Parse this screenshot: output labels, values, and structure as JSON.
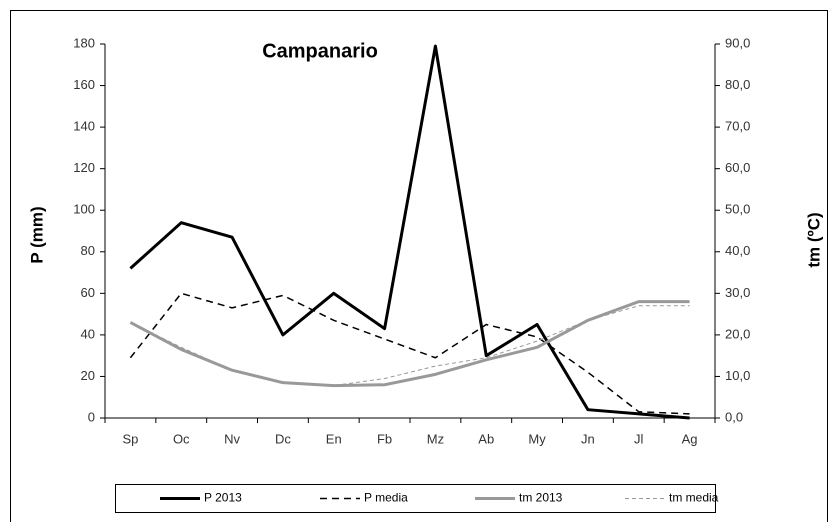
{
  "chart_data": {
    "type": "line",
    "title": "Campanario",
    "y_label": "P (mm)",
    "y2_label": "tm (ºC)",
    "categories": [
      "Sp",
      "Oc",
      "Nv",
      "Dc",
      "En",
      "Fb",
      "Mz",
      "Ab",
      "My",
      "Jn",
      "Jl",
      "Ag"
    ],
    "ylim": [
      0,
      180
    ],
    "yticks": [
      0,
      20,
      40,
      60,
      80,
      100,
      120,
      140,
      160,
      180
    ],
    "y2lim": [
      0,
      90
    ],
    "y2ticks": [
      {
        "value": 0,
        "label": "0,0"
      },
      {
        "value": 10,
        "label": "10,0"
      },
      {
        "value": 20,
        "label": "20,0"
      },
      {
        "value": 30,
        "label": "30,0"
      },
      {
        "value": 40,
        "label": "40,0"
      },
      {
        "value": 50,
        "label": "50,0"
      },
      {
        "value": 60,
        "label": "60,0"
      },
      {
        "value": 70,
        "label": "70,0"
      },
      {
        "value": 80,
        "label": "80,0"
      },
      {
        "value": 90,
        "label": "90,0"
      }
    ],
    "legend": "bottom",
    "series": [
      {
        "name": "P 2013",
        "color": "#000000",
        "line_style": "solid",
        "line_weight": "bold",
        "values": [
          72,
          94,
          87,
          40,
          60,
          43,
          179,
          30,
          45,
          4,
          2,
          0
        ]
      },
      {
        "name": "P media",
        "color": "#000000",
        "line_style": "dashed",
        "line_weight": "normal",
        "values": [
          29,
          60,
          53,
          59,
          47,
          38,
          29,
          45,
          39,
          22,
          3,
          2
        ]
      },
      {
        "name": "tm 2013",
        "color": "#999999",
        "line_style": "solid",
        "line_weight": "bold",
        "axis": "y2",
        "values": [
          23,
          16.5,
          11.5,
          8.5,
          7.8,
          8,
          10.5,
          14,
          17,
          23.5,
          28,
          28
        ]
      },
      {
        "name": "tm media",
        "color": "#999999",
        "line_style": "dashed",
        "line_weight": "thin",
        "axis": "y2",
        "values": [
          23,
          17,
          11.5,
          8.7,
          7.8,
          9.5,
          12.5,
          14.5,
          18.5,
          23.5,
          27,
          27
        ]
      }
    ]
  }
}
